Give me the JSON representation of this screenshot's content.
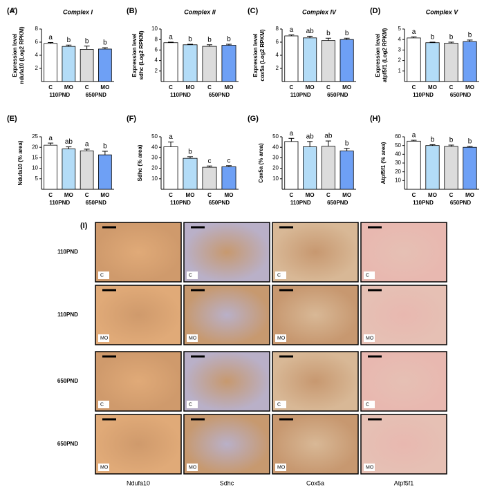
{
  "sex_symbol": "♂",
  "chart_data": [
    {
      "type": "bar",
      "panel": "(A)",
      "title": "Complex I",
      "ylabel": [
        "Expression level",
        "ndufa10 (Log2 RPKM)"
      ],
      "categories": [
        "C",
        "MO",
        "C",
        "MO"
      ],
      "groups": [
        "110PND",
        "650PND"
      ],
      "values": [
        5.8,
        5.35,
        4.9,
        4.95
      ],
      "errors": [
        0.15,
        0.2,
        0.5,
        0.2
      ],
      "letters": [
        "a",
        "b",
        "b",
        "b"
      ],
      "colors": [
        "#ffffff",
        "#b3dcf7",
        "#dcdcdc",
        "#6ea0f5"
      ],
      "ylim": [
        0,
        8
      ],
      "yticks": [
        2,
        4,
        6,
        8
      ]
    },
    {
      "type": "bar",
      "panel": "(B)",
      "title": "Complex II",
      "ylabel": [
        "Expression level",
        "sdhc (Log2 RPKM)"
      ],
      "categories": [
        "C",
        "MO",
        "C",
        "MO"
      ],
      "groups": [
        "110PND",
        "650PND"
      ],
      "values": [
        7.4,
        7.0,
        6.7,
        6.9
      ],
      "errors": [
        0.1,
        0.1,
        0.3,
        0.2
      ],
      "letters": [
        "a",
        "b",
        "b",
        "b"
      ],
      "colors": [
        "#ffffff",
        "#b3dcf7",
        "#dcdcdc",
        "#6ea0f5"
      ],
      "ylim": [
        0,
        10
      ],
      "yticks": [
        2,
        4,
        6,
        8,
        10
      ]
    },
    {
      "type": "bar",
      "panel": "(C)",
      "title": "Complex IV",
      "ylabel": [
        "Expression level",
        "cox5a (Log2 RPKM)"
      ],
      "categories": [
        "C",
        "MO",
        "C",
        "MO"
      ],
      "groups": [
        "110PND",
        "650PND"
      ],
      "values": [
        6.95,
        6.65,
        6.25,
        6.4
      ],
      "errors": [
        0.15,
        0.25,
        0.35,
        0.2
      ],
      "letters": [
        "a",
        "ab",
        "b",
        "b"
      ],
      "colors": [
        "#ffffff",
        "#b3dcf7",
        "#dcdcdc",
        "#6ea0f5"
      ],
      "ylim": [
        0,
        8
      ],
      "yticks": [
        2,
        4,
        6,
        8
      ]
    },
    {
      "type": "bar",
      "panel": "(D)",
      "title": "Complex V",
      "ylabel": [
        "Expression level",
        "atpf5f1 (Log2 RPKM)"
      ],
      "categories": [
        "C",
        "MO",
        "C",
        "MO"
      ],
      "groups": [
        "110PND",
        "650PND"
      ],
      "values": [
        4.15,
        3.7,
        3.65,
        3.8
      ],
      "errors": [
        0.1,
        0.05,
        0.1,
        0.15
      ],
      "letters": [
        "a",
        "b",
        "b",
        "b"
      ],
      "colors": [
        "#ffffff",
        "#b3dcf7",
        "#dcdcdc",
        "#6ea0f5"
      ],
      "ylim": [
        0,
        5
      ],
      "yticks": [
        1,
        2,
        3,
        4,
        5
      ]
    },
    {
      "type": "bar",
      "panel": "(E)",
      "ylabel": [
        "Ndufa10  (% area)"
      ],
      "categories": [
        "C",
        "MO",
        "C",
        "MO"
      ],
      "groups": [
        "110PND",
        "650PND"
      ],
      "values": [
        21,
        19.2,
        18.3,
        16.4
      ],
      "errors": [
        1,
        1,
        0.8,
        1.7
      ],
      "letters": [
        "a",
        "ab",
        "a",
        "b"
      ],
      "colors": [
        "#ffffff",
        "#b3dcf7",
        "#dcdcdc",
        "#6ea0f5"
      ],
      "ylim": [
        0,
        25
      ],
      "yticks": [
        5,
        10,
        15,
        20,
        25
      ]
    },
    {
      "type": "bar",
      "panel": "(F)",
      "ylabel": [
        "Sdhc (% area)"
      ],
      "categories": [
        "C",
        "MO",
        "C",
        "MO"
      ],
      "groups": [
        "110PND",
        "650PND"
      ],
      "values": [
        40.5,
        29.5,
        21,
        21.5
      ],
      "errors": [
        4.5,
        1.5,
        1.2,
        1
      ],
      "letters": [
        "a",
        "b",
        "c",
        "c"
      ],
      "colors": [
        "#ffffff",
        "#b3dcf7",
        "#dcdcdc",
        "#6ea0f5"
      ],
      "ylim": [
        0,
        50
      ],
      "yticks": [
        10,
        20,
        30,
        40,
        50
      ]
    },
    {
      "type": "bar",
      "panel": "(G)",
      "ylabel": [
        "Cox5a (% area)"
      ],
      "categories": [
        "C",
        "MO",
        "C",
        "MO"
      ],
      "groups": [
        "110PND",
        "650PND"
      ],
      "values": [
        45.5,
        40.5,
        41,
        36.5
      ],
      "errors": [
        3,
        5,
        5,
        2.5
      ],
      "letters": [
        "a",
        "ab",
        "ab",
        "b"
      ],
      "colors": [
        "#ffffff",
        "#b3dcf7",
        "#dcdcdc",
        "#6ea0f5"
      ],
      "ylim": [
        0,
        50
      ],
      "yticks": [
        10,
        20,
        30,
        40,
        50
      ]
    },
    {
      "type": "bar",
      "panel": "(H)",
      "ylabel": [
        "Atpf5f1 (% area)"
      ],
      "categories": [
        "C",
        "MO",
        "C",
        "MO"
      ],
      "groups": [
        "110PND",
        "650PND"
      ],
      "values": [
        55,
        50,
        49,
        48
      ],
      "errors": [
        1,
        1,
        1.5,
        1
      ],
      "letters": [
        "a",
        "b",
        "b",
        "b"
      ],
      "colors": [
        "#ffffff",
        "#b3dcf7",
        "#dcdcdc",
        "#6ea0f5"
      ],
      "ylim": [
        0,
        60
      ],
      "yticks": [
        10,
        20,
        30,
        40,
        50,
        60
      ]
    }
  ],
  "image_grid": {
    "panel": "(I)",
    "row_labels": [
      "110PND",
      "110PND",
      "650PND",
      "650PND"
    ],
    "tile_labels": [
      [
        "C",
        "C",
        "C",
        "C"
      ],
      [
        "MO",
        "MO",
        "MO",
        "MO"
      ],
      [
        "C",
        "C",
        "C",
        "C"
      ],
      [
        "MO",
        "MO",
        "MO",
        "MO"
      ]
    ],
    "column_labels": [
      "Ndufa10",
      "Sdhc",
      "Cox5a",
      "Atpf5f1"
    ]
  }
}
